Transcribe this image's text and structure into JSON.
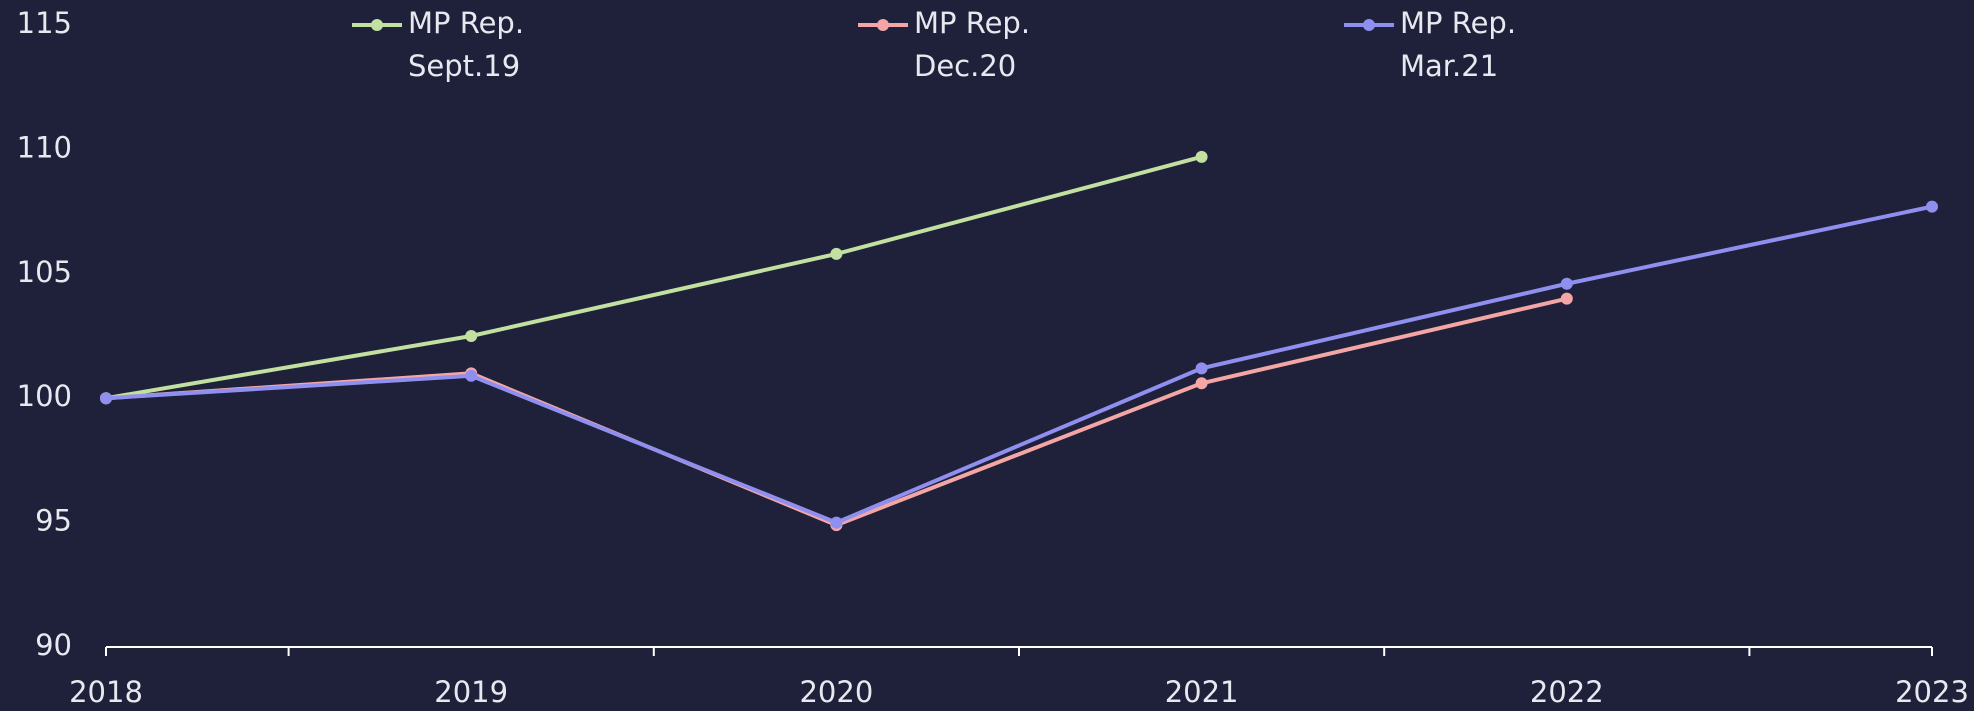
{
  "chart_data": {
    "type": "line",
    "categories": [
      "2018",
      "2019",
      "2020",
      "2021",
      "2022",
      "2023"
    ],
    "series": [
      {
        "name": "MP Rep.\nSept.19",
        "color": "#c2e0a0",
        "values": [
          100,
          102.5,
          105.8,
          109.7,
          null,
          null
        ]
      },
      {
        "name": "MP Rep.\nDec.20",
        "color": "#f4a6a6",
        "values": [
          100,
          101,
          94.9,
          100.6,
          104,
          null
        ]
      },
      {
        "name": "MP Rep.\nMar.21",
        "color": "#8f8ff0",
        "values": [
          100,
          100.9,
          95,
          101.2,
          104.6,
          107.7
        ]
      }
    ],
    "ylim": [
      90,
      115
    ],
    "yticks": [
      90,
      95,
      100,
      105,
      110,
      115
    ],
    "grid": false,
    "legend": "top"
  }
}
